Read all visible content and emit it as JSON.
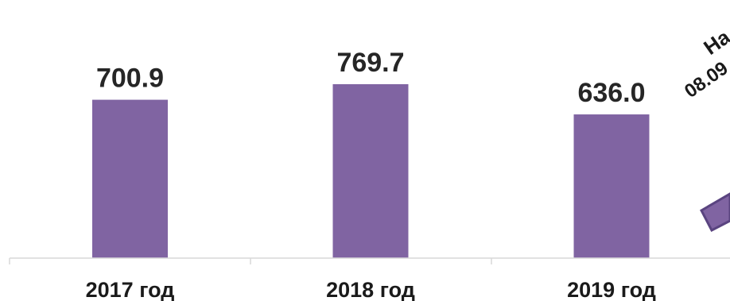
{
  "chart_data": {
    "type": "bar",
    "categories": [
      "2017 год",
      "2018 год",
      "2019 год"
    ],
    "values": [
      700.9,
      769.7,
      636.0
    ],
    "value_labels": [
      "700.9",
      "769.7",
      "636.0"
    ],
    "bar_color": "#8064a2",
    "callout": {
      "visible_text_line1": "На",
      "visible_text_line2": "08.09",
      "note": "partially visible rotated callout at right edge"
    },
    "ylim": [
      0,
      1000
    ],
    "grid": false,
    "legend": "none",
    "title": ""
  }
}
